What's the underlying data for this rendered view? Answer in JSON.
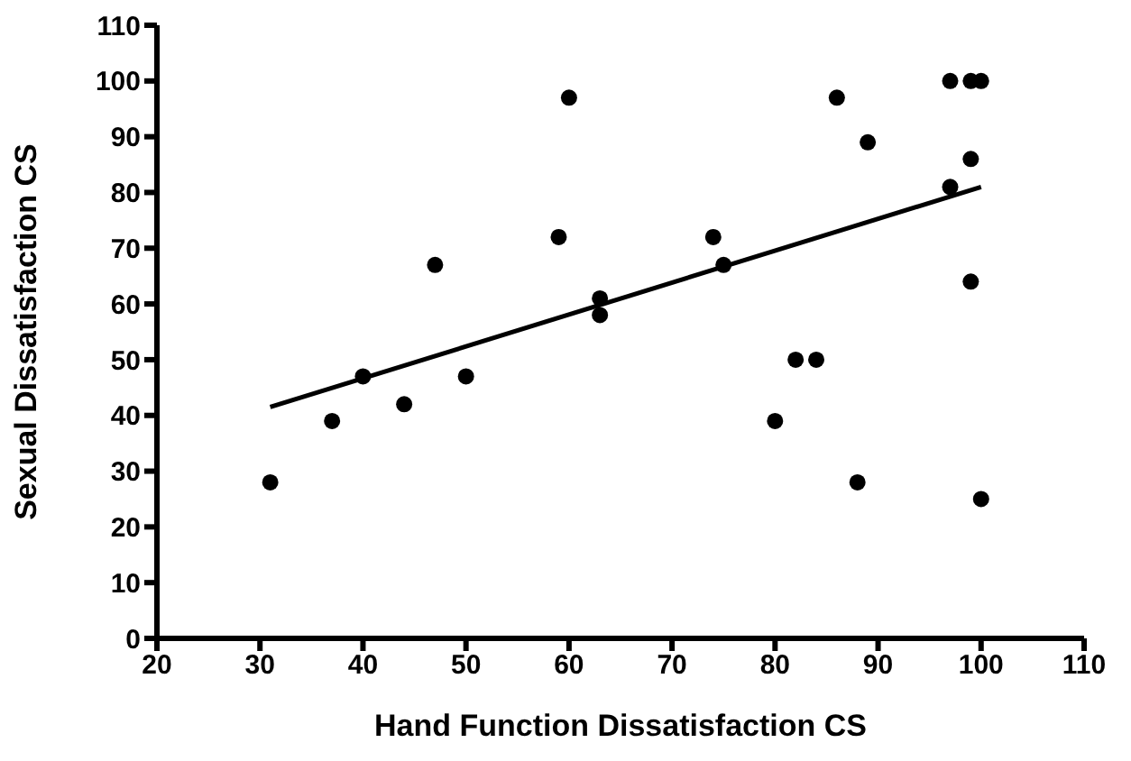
{
  "chart_data": {
    "type": "scatter",
    "xlabel": "Hand Function Dissatisfaction CS",
    "ylabel": "Sexual Dissatisfaction CS",
    "xlim": [
      20,
      110
    ],
    "xticks": [
      20,
      30,
      40,
      50,
      60,
      70,
      80,
      90,
      100,
      110
    ],
    "ylim": [
      0,
      110
    ],
    "yticks": [
      0,
      10,
      20,
      30,
      40,
      50,
      60,
      70,
      80,
      90,
      100,
      110
    ],
    "marker": "circle",
    "series": [
      {
        "color": "#000000",
        "x": [
          31,
          37,
          40,
          44,
          47,
          50,
          59,
          60,
          63,
          63,
          74,
          75,
          80,
          82,
          84,
          86,
          88,
          89,
          97,
          97,
          99,
          99,
          99,
          100,
          100
        ],
        "values": [
          28,
          39,
          47,
          42,
          67,
          47,
          72,
          97,
          61,
          58,
          72,
          67,
          39,
          50,
          50,
          97,
          28,
          89,
          100,
          81,
          100,
          86,
          64,
          100,
          25
        ]
      },
      {
        "type": "line",
        "color": "#000000",
        "marker": "none",
        "line_style": "solid",
        "x": [
          31,
          100
        ],
        "values": [
          41.5,
          81
        ]
      }
    ]
  }
}
